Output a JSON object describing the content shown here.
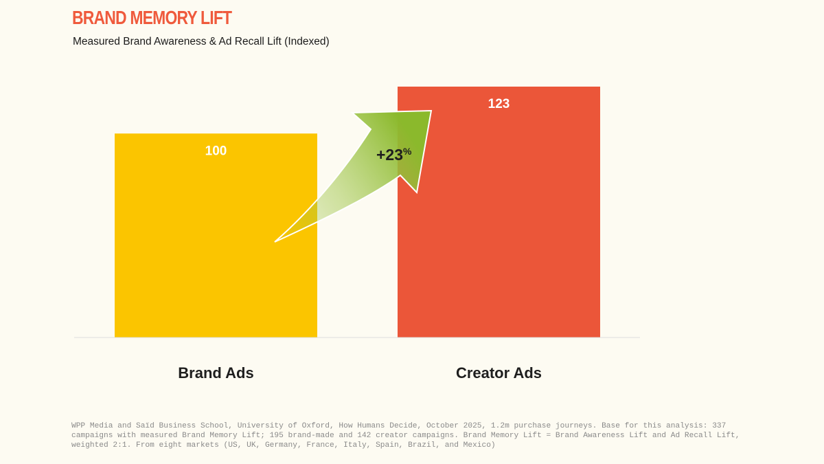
{
  "colors": {
    "background": "#fdfbf2",
    "title": "#ef5a3c",
    "brand_bar": "#fbc500",
    "creator_bar": "#eb5639",
    "arrow": "#8bb92c",
    "axis": "#dddddd"
  },
  "chart_data": {
    "type": "bar",
    "title": "BRAND MEMORY LIFT",
    "subtitle": "Measured Brand Awareness & Ad Recall Lift (Indexed)",
    "categories": [
      "Brand Ads",
      "Creator Ads"
    ],
    "values": [
      100,
      123
    ],
    "value_labels": [
      "100",
      "123"
    ],
    "ylim": [
      0,
      123
    ],
    "grid": false,
    "annotation": {
      "value": "+23",
      "unit": "%",
      "from": "Brand Ads",
      "to": "Creator Ads"
    }
  },
  "footnote": "WPP Media and Saïd Business School, University of Oxford, How Humans Decide, October 2025, 1.2m purchase journeys. Base for this analysis: 337 campaigns with measured Brand Memory Lift; 195 brand-made and 142 creator campaigns. Brand Memory Lift = Brand Awareness Lift and Ad Recall Lift, weighted 2:1. From eight markets (US, UK, Germany, France, Italy, Spain, Brazil, and Mexico)"
}
